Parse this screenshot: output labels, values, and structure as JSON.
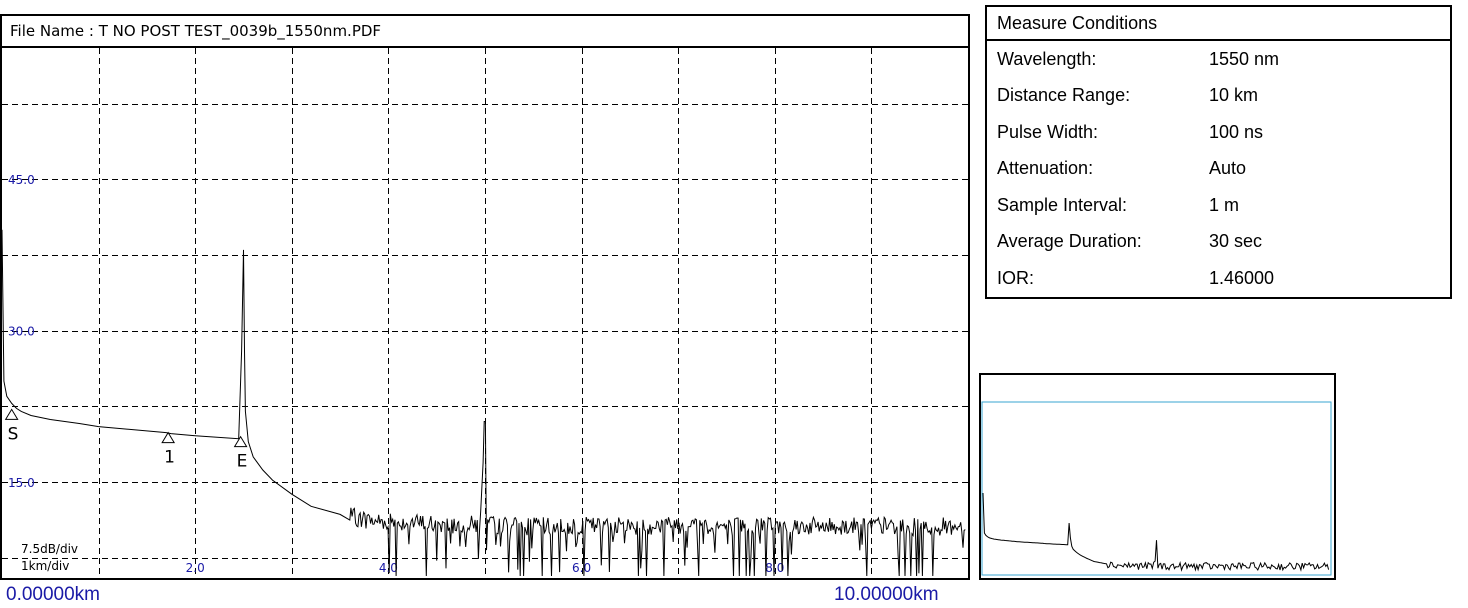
{
  "file_name": "File Name : T NO POST TEST_0039b_1550nm.PDF",
  "range": {
    "start": "0.00000km",
    "end": "10.00000km"
  },
  "scale": {
    "vertical": "7.5dB/div",
    "horizontal": "1km/div"
  },
  "measure_conditions": {
    "title": "Measure Conditions",
    "rows": [
      {
        "label": "Wavelength:",
        "value": "1550 nm"
      },
      {
        "label": "Distance Range:",
        "value": "10 km"
      },
      {
        "label": "Pulse Width:",
        "value": "100 ns"
      },
      {
        "label": "Attenuation:",
        "value": "Auto"
      },
      {
        "label": "Sample Interval:",
        "value": "1 m"
      },
      {
        "label": "Average Duration:",
        "value": "30 sec"
      },
      {
        "label": "IOR:",
        "value": "1.46000"
      }
    ]
  },
  "colors": {
    "trace": "#000000",
    "tick_text": "#1a1aa6",
    "grid": "#000000",
    "overview_border": "#3aa6d0"
  },
  "chart_data": {
    "type": "line",
    "title": "",
    "xlabel": "",
    "ylabel": "",
    "xlim": [
      0,
      10
    ],
    "ylim": [
      5.5,
      58
    ],
    "grid": true,
    "x_ticks": [
      2.0,
      4.0,
      6.0,
      8.0
    ],
    "x_tick_labels": [
      "2.0",
      "4.0",
      "6.0",
      "8.0"
    ],
    "y_ticks": [
      15.0,
      30.0,
      45.0
    ],
    "y_tick_labels": [
      "15.0",
      "30.0",
      "45.0"
    ],
    "series": [
      {
        "x": [
          0.0,
          0.02,
          0.05,
          0.1,
          0.15,
          0.2,
          0.3,
          0.5,
          0.8,
          1.0,
          1.7,
          1.75,
          2.0,
          2.45,
          2.48,
          2.5,
          2.51,
          2.52,
          2.55,
          2.6,
          2.7,
          2.8,
          3.0,
          3.2,
          3.5,
          3.8,
          4.2,
          4.6,
          4.95,
          5.0,
          5.02,
          5.05,
          5.5,
          6.0,
          6.5,
          7.0,
          7.5,
          8.0,
          8.5,
          9.0,
          9.5,
          9.98
        ],
        "y": [
          40,
          25,
          23.5,
          22.8,
          22.3,
          22.0,
          21.6,
          21.2,
          20.8,
          20.5,
          19.9,
          19.8,
          19.6,
          19.3,
          28,
          38,
          28,
          22,
          19,
          17.5,
          16.2,
          15.2,
          13.8,
          12.6,
          11.8,
          11.2,
          11.0,
          10.8,
          10.8,
          21,
          10.8,
          10.8,
          10.6,
          10.7,
          10.6,
          10.8,
          10.6,
          10.7,
          10.6,
          10.7,
          10.6,
          10.6
        ],
        "noise_from": 3.6
      }
    ],
    "events": [
      {
        "label": "S",
        "x": 0.1,
        "y": 22.2
      },
      {
        "label": "1",
        "x": 1.72,
        "y": 19.9
      },
      {
        "label": "E",
        "x": 2.47,
        "y": 19.5
      }
    ]
  }
}
